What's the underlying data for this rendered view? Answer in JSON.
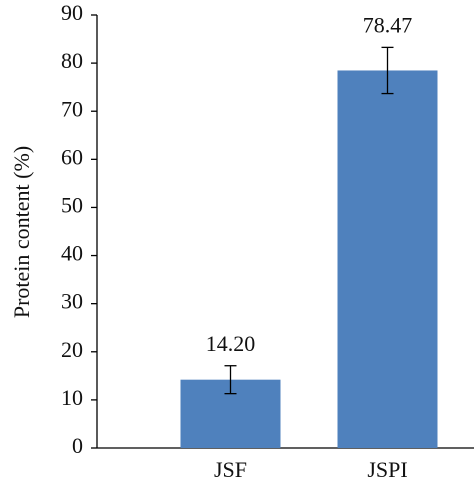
{
  "chart_data": {
    "type": "bar",
    "y_label": "Protein content (%)",
    "categories": [
      "JSF",
      "JSPI"
    ],
    "values": [
      14.2,
      78.47
    ],
    "value_labels": [
      "14.20",
      "78.47"
    ],
    "errors": [
      2.9,
      4.8
    ],
    "color": "#4f81bd",
    "ylim": [
      0,
      90
    ],
    "yticks": [
      0,
      10,
      20,
      30,
      40,
      50,
      60,
      70,
      80,
      90
    ],
    "grid": false
  }
}
